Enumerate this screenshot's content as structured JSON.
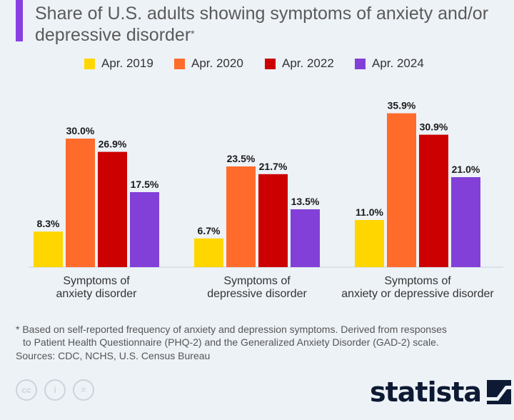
{
  "title": "Share of U.S. adults showing symptoms of anxiety and/or depressive disorder",
  "title_footnote_marker": "*",
  "legend": [
    {
      "label": "Apr. 2019",
      "color": "#ffd600"
    },
    {
      "label": "Apr. 2020",
      "color": "#ff6b2b"
    },
    {
      "label": "Apr. 2022",
      "color": "#cc0000"
    },
    {
      "label": "Apr. 2024",
      "color": "#8340d8"
    }
  ],
  "chart_data": {
    "type": "bar",
    "title": "Share of U.S. adults showing symptoms of anxiety and/or depressive disorder",
    "categories": [
      [
        "Symptoms of",
        "anxiety disorder"
      ],
      [
        "Symptoms of",
        "depressive disorder"
      ],
      [
        "Symptoms of",
        "anxiety or depressive disorder"
      ]
    ],
    "series": [
      {
        "name": "Apr. 2019",
        "color": "#ffd600",
        "values": [
          8.3,
          6.7,
          11.0
        ],
        "labels": [
          "8.3%",
          "6.7%",
          "11.0%"
        ]
      },
      {
        "name": "Apr. 2020",
        "color": "#ff6b2b",
        "values": [
          30.0,
          23.5,
          35.9
        ],
        "labels": [
          "30.0%",
          "23.5%",
          "35.9%"
        ]
      },
      {
        "name": "Apr. 2022",
        "color": "#cc0000",
        "values": [
          26.9,
          21.7,
          30.9
        ],
        "labels": [
          "26.9%",
          "21.7%",
          "30.9%"
        ]
      },
      {
        "name": "Apr. 2024",
        "color": "#8340d8",
        "values": [
          17.5,
          13.5,
          21.0
        ],
        "labels": [
          "17.5%",
          "13.5%",
          "21.0%"
        ]
      }
    ],
    "xlabel": "",
    "ylabel": "",
    "ylim": [
      0,
      40
    ],
    "grid": false,
    "legend_position": "top"
  },
  "footnote": {
    "line1": "* Based on self-reported frequency of anxiety and depression symptoms. Derived from responses",
    "line2": "to Patient Health Questionnaire (PHQ-2) and the Generalized Anxiety Disorder (GAD-2) scale."
  },
  "sources": "Sources: CDC, NCHS, U.S. Census Bureau",
  "cc_icons": [
    {
      "name": "cc-icon",
      "glyph": "cc"
    },
    {
      "name": "attribution-icon",
      "glyph": "i"
    },
    {
      "name": "no-derivatives-icon",
      "glyph": "="
    }
  ],
  "brand": {
    "name": "statista",
    "icon": "statista-logo-icon"
  }
}
